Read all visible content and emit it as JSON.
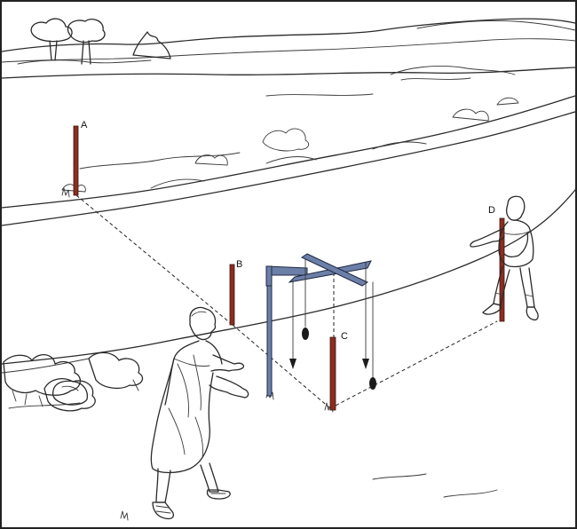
{
  "labels": {
    "pole_a": "A",
    "pole_b": "B",
    "pole_c": "C",
    "pole_d": "D"
  },
  "colors": {
    "pole": "#8b2d1f",
    "groma": "#6b7fa8",
    "ink": "#2a2a2a",
    "background": "#ffffff"
  }
}
